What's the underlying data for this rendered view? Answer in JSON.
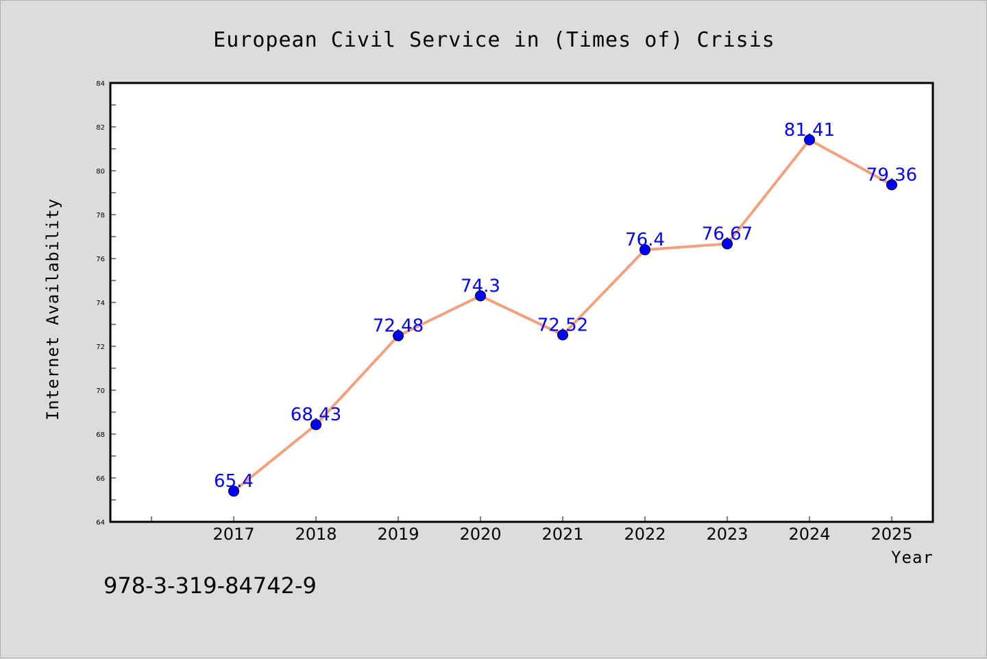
{
  "chart_data": {
    "type": "line",
    "title": "European Civil Service in (Times of) Crisis",
    "xlabel": "Year",
    "ylabel": "Internet Availability",
    "categories": [
      "2017",
      "2018",
      "2019",
      "2020",
      "2021",
      "2022",
      "2023",
      "2024",
      "2025"
    ],
    "series": [
      {
        "values": [
          65.4,
          68.43,
          72.48,
          74.3,
          72.52,
          76.4,
          76.67,
          81.41,
          79.36
        ],
        "labels": [
          "65.4",
          "68.43",
          "72.48",
          "74.3",
          "72.52",
          "76.4",
          "76.67",
          "81.41",
          "79.36"
        ],
        "line_color": "#f4a07c",
        "marker_color": "#0000ff"
      }
    ],
    "ylim": [
      64,
      84
    ],
    "yticks": [
      64,
      66,
      68,
      70,
      72,
      74,
      76,
      78,
      80,
      82,
      84
    ],
    "ytick_labels": [
      "64",
      "66",
      "68",
      "70",
      "72",
      "74",
      "76",
      "78",
      "80",
      "82",
      "84"
    ],
    "grid": false,
    "legend": "none"
  },
  "annotation": "978-3-319-84742-9",
  "colors": {
    "background": "#dcdcdc",
    "plot_background": "#ffffff",
    "data_label": "#0000ff"
  }
}
